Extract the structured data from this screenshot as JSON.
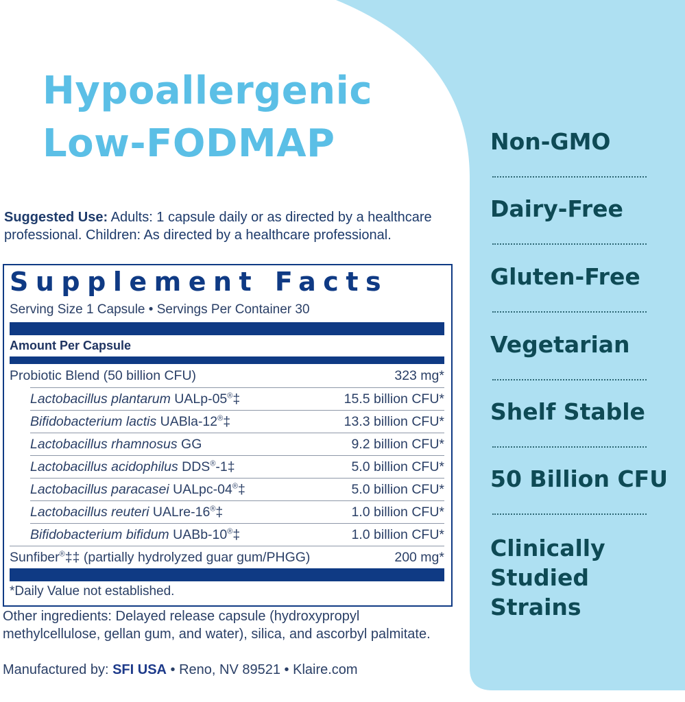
{
  "headline": [
    "Hypoallergenic",
    "Low-FODMAP"
  ],
  "suggested_use": {
    "label": "Suggested Use:",
    "text": " Adults: 1 capsule daily or as directed by a healthcare professional. Children: As directed by a healthcare professional."
  },
  "facts": {
    "title": "Supplement Facts",
    "serving": "Serving Size 1 Capsule • Servings Per Container 30",
    "amount_header": "Amount Per Capsule",
    "rows": [
      {
        "name": "",
        "plain": "Probiotic Blend (50 billion CFU)",
        "amount": "323 mg*"
      },
      {
        "name": "Lactobacillus plantarum",
        "plain": " UALp-05",
        "sup": "®",
        "mark": "‡",
        "amount": "15.5 billion CFU*"
      },
      {
        "name": "Bifidobacterium lactis",
        "plain": " UABla-12",
        "sup": "®",
        "mark": "‡",
        "amount": "13.3 billion CFU*"
      },
      {
        "name": "Lactobacillus rhamnosus",
        "plain": " GG",
        "sup": "",
        "mark": "",
        "amount": "9.2 billion CFU*"
      },
      {
        "name": "Lactobacillus acidophilus",
        "plain": " DDS",
        "sup": "®",
        "mark": "-1‡",
        "amount": "5.0 billion CFU*"
      },
      {
        "name": "Lactobacillus paracasei",
        "plain": " UALpc-04",
        "sup": "®",
        "mark": "‡",
        "amount": "5.0 billion CFU*"
      },
      {
        "name": "Lactobacillus reuteri",
        "plain": " UALre-16",
        "sup": "®",
        "mark": "‡",
        "amount": "1.0 billion CFU*"
      },
      {
        "name": "Bifidobacterium bifidum",
        "plain": " UABb-10",
        "sup": "®",
        "mark": "‡",
        "amount": "1.0 billion CFU*"
      },
      {
        "name": "",
        "plain": "Sunfiber",
        "sup": "®",
        "mark": "‡‡ (partially hydrolyzed guar gum/PHGG)",
        "amount": "200 mg*"
      }
    ],
    "footnote": "*Daily Value not established."
  },
  "other_ingredients": "Other ingredients: Delayed release capsule (hydroxypropyl methylcellulose, gellan gum, and water), silica, and ascorbyl palmitate.",
  "manufacturer": {
    "label": "Manufactured by: ",
    "company": "SFI USA",
    "rest": " • Reno, NV 89521 • Klaire.com"
  },
  "claims": [
    "Non-GMO",
    "Dairy-Free",
    "Gluten-Free",
    "Vegetarian",
    "Shelf Stable",
    "50 Billion CFU",
    "Clinically Studied Strains"
  ],
  "colors": {
    "panel": "#aee0f2",
    "headline": "#5bbfe6",
    "navy": "#0f3a84",
    "claim_text": "#0e4a55"
  }
}
